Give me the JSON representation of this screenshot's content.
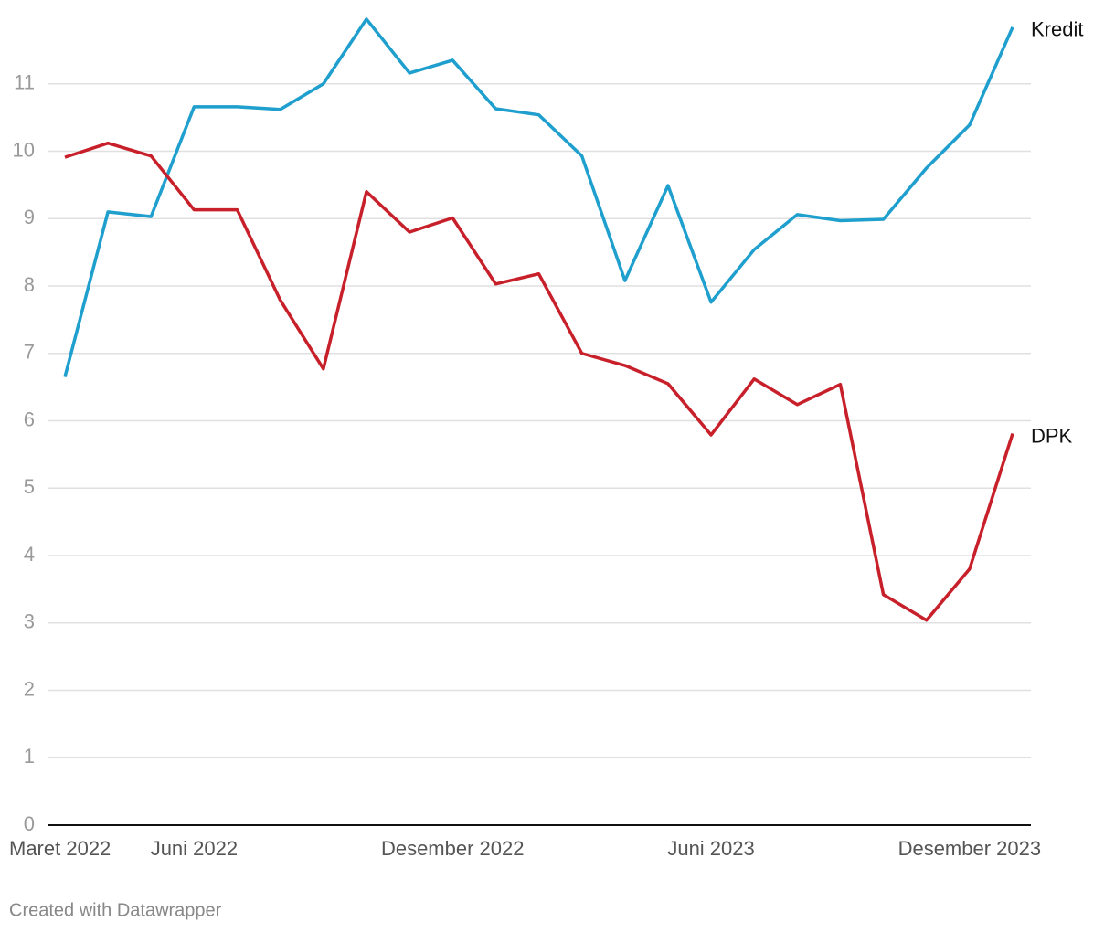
{
  "chart_data": {
    "type": "line",
    "categories": [
      "Maret 2022",
      null,
      null,
      "Juni 2022",
      null,
      null,
      null,
      null,
      null,
      "Desember 2022",
      null,
      null,
      null,
      null,
      null,
      "Juni 2023",
      null,
      null,
      null,
      null,
      null,
      "Desember 2023",
      null
    ],
    "series": [
      {
        "name": "Kredit",
        "color": "#1f9fce",
        "values": [
          6.65,
          9.1,
          9.03,
          10.66,
          10.66,
          10.62,
          11.0,
          11.96,
          11.16,
          11.35,
          10.63,
          10.54,
          9.93,
          8.08,
          9.49,
          7.76,
          8.54,
          9.06,
          8.97,
          8.99,
          9.75,
          10.39,
          11.84
        ]
      },
      {
        "name": "DPK",
        "color": "#c8202a",
        "values": [
          9.91,
          10.12,
          9.93,
          9.13,
          9.13,
          7.79,
          6.77,
          9.4,
          8.8,
          9.01,
          8.03,
          8.18,
          7.0,
          6.82,
          6.55,
          5.79,
          6.62,
          6.24,
          6.54,
          3.42,
          3.04,
          3.8,
          5.81
        ]
      }
    ],
    "ylim": [
      0,
      12
    ],
    "yticks": [
      0,
      1,
      2,
      3,
      4,
      5,
      6,
      7,
      8,
      9,
      10,
      11
    ],
    "grid": true,
    "credit": "Created with Datawrapper"
  }
}
